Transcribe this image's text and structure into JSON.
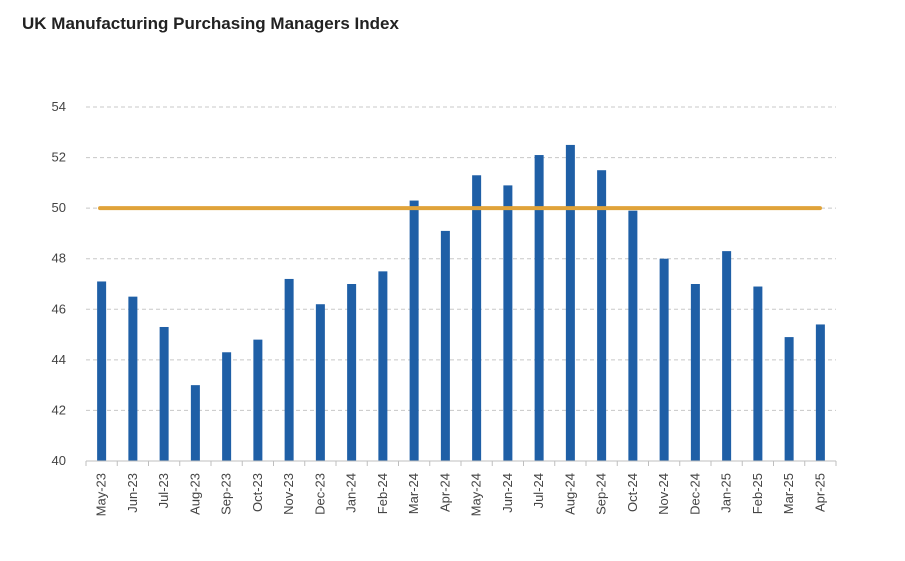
{
  "title": "UK Manufacturing Purchasing Managers Index",
  "chart_data": {
    "type": "bar",
    "title": "UK Manufacturing Purchasing Managers Index",
    "xlabel": "",
    "ylabel": "",
    "ylim": [
      40,
      54
    ],
    "yticks": [
      40,
      42,
      44,
      46,
      48,
      50,
      52,
      54
    ],
    "grid": true,
    "categories": [
      "May-23",
      "Jun-23",
      "Jul-23",
      "Aug-23",
      "Sep-23",
      "Oct-23",
      "Nov-23",
      "Dec-23",
      "Jan-24",
      "Feb-24",
      "Mar-24",
      "Apr-24",
      "May-24",
      "Jun-24",
      "Jul-24",
      "Aug-24",
      "Sep-24",
      "Oct-24",
      "Nov-24",
      "Dec-24",
      "Jan-25",
      "Feb-25",
      "Mar-25",
      "Apr-25"
    ],
    "values": [
      47.1,
      46.5,
      45.3,
      43.0,
      44.3,
      44.8,
      47.2,
      46.2,
      47.0,
      47.5,
      50.3,
      49.1,
      51.3,
      50.9,
      52.1,
      52.5,
      51.5,
      49.9,
      48.0,
      47.0,
      48.3,
      46.9,
      44.9,
      45.4
    ],
    "reference_line": 50,
    "colors": {
      "bar": "#1f5fa6",
      "reference_line": "#e0a33a",
      "grid": "#c8c8c8",
      "axis": "#bfbfbf"
    }
  }
}
